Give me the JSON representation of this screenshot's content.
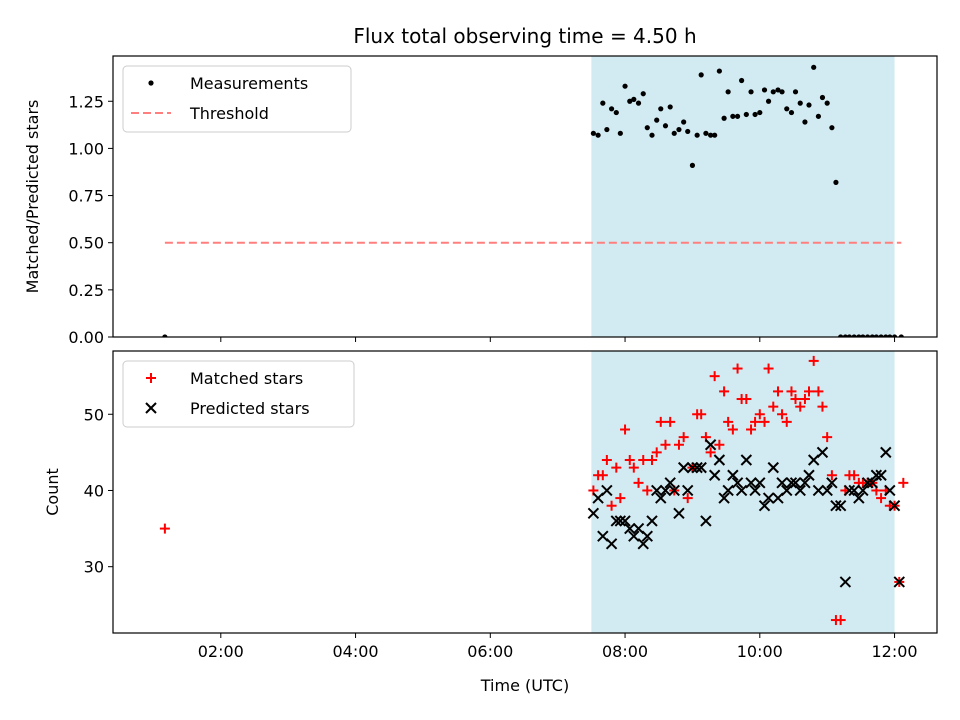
{
  "chart_data": {
    "title": "Flux total observing time = 4.50 h",
    "xlabel": "Time (UTC)",
    "x_units": "decimal hours UTC",
    "xlim": [
      0.4,
      12.63
    ],
    "x_ticks": [
      2,
      4,
      6,
      8,
      10,
      12
    ],
    "x_tick_labels": [
      "02:00",
      "04:00",
      "06:00",
      "08:00",
      "10:00",
      "12:00"
    ],
    "observing_window": {
      "start": 7.5,
      "end": 12.0,
      "color": "#add8e6"
    },
    "panels": [
      {
        "type": "scatter",
        "name": "ratio-panel",
        "ylabel": "Matched/Predicted stars",
        "ylim": [
          0,
          1.49
        ],
        "y_ticks": [
          0,
          0.25,
          0.5,
          0.75,
          1.0,
          1.25
        ],
        "y_tick_labels": [
          "0.00",
          "0.25",
          "0.50",
          "0.75",
          "1.00",
          "1.25"
        ],
        "legend_position": "top-left",
        "series": [
          {
            "name": "Measurements",
            "marker": "dot",
            "color": "#000000",
            "x": [
              1.17,
              7.53,
              7.6,
              7.67,
              7.73,
              7.8,
              7.87,
              7.93,
              8.0,
              8.07,
              8.13,
              8.2,
              8.27,
              8.33,
              8.4,
              8.47,
              8.53,
              8.6,
              8.67,
              8.73,
              8.8,
              8.87,
              8.93,
              9.0,
              9.07,
              9.13,
              9.2,
              9.27,
              9.33,
              9.4,
              9.47,
              9.53,
              9.6,
              9.67,
              9.73,
              9.8,
              9.87,
              9.93,
              10.0,
              10.07,
              10.13,
              10.2,
              10.27,
              10.33,
              10.4,
              10.47,
              10.53,
              10.6,
              10.67,
              10.73,
              10.8,
              10.87,
              10.93,
              11.0,
              11.07,
              11.13,
              11.2,
              11.27,
              11.33,
              11.4,
              11.47,
              11.53,
              11.6,
              11.67,
              11.73,
              11.8,
              11.87,
              11.93,
              12.0,
              12.1
            ],
            "y": [
              0.0,
              1.08,
              1.07,
              1.24,
              1.1,
              1.21,
              1.19,
              1.08,
              1.33,
              1.25,
              1.26,
              1.24,
              1.29,
              1.11,
              1.07,
              1.15,
              1.21,
              1.12,
              1.22,
              1.08,
              1.1,
              1.14,
              1.09,
              0.91,
              1.07,
              1.39,
              1.08,
              1.07,
              1.07,
              1.41,
              1.16,
              1.3,
              1.17,
              1.17,
              1.36,
              1.18,
              1.3,
              1.18,
              1.19,
              1.31,
              1.25,
              1.3,
              1.31,
              1.3,
              1.21,
              1.19,
              1.3,
              1.24,
              1.14,
              1.23,
              1.43,
              1.17,
              1.27,
              1.24,
              1.11,
              0.82,
              0.0,
              0.0,
              0.0,
              0.0,
              0.0,
              0.0,
              0.0,
              0.0,
              0.0,
              0.0,
              0.0,
              0.0,
              0.0,
              0.0
            ]
          },
          {
            "name": "Threshold",
            "marker": "dashed-line",
            "color": "#ff7f7f",
            "x": [
              1.17,
              12.1
            ],
            "y": [
              0.5,
              0.5
            ]
          }
        ]
      },
      {
        "type": "scatter",
        "name": "count-panel",
        "ylabel": "Count",
        "ylim": [
          21.3,
          58.3
        ],
        "y_ticks": [
          30,
          40,
          50
        ],
        "y_tick_labels": [
          "30",
          "40",
          "50"
        ],
        "legend_position": "top-left",
        "series": [
          {
            "name": "Matched stars",
            "marker": "plus",
            "color": "#ff0000",
            "x": [
              1.17,
              7.53,
              7.6,
              7.67,
              7.73,
              7.8,
              7.87,
              7.93,
              8.0,
              8.07,
              8.13,
              8.2,
              8.27,
              8.33,
              8.4,
              8.47,
              8.53,
              8.6,
              8.67,
              8.73,
              8.8,
              8.87,
              8.93,
              9.0,
              9.07,
              9.13,
              9.2,
              9.27,
              9.33,
              9.4,
              9.47,
              9.53,
              9.6,
              9.67,
              9.73,
              9.8,
              9.87,
              9.93,
              10.0,
              10.07,
              10.13,
              10.2,
              10.27,
              10.33,
              10.4,
              10.47,
              10.53,
              10.6,
              10.67,
              10.73,
              10.8,
              10.87,
              10.93,
              11.0,
              11.07,
              11.13,
              11.2,
              11.27,
              11.33,
              11.4,
              11.47,
              11.53,
              11.6,
              11.67,
              11.73,
              11.8,
              11.87,
              11.93,
              12.0,
              12.07,
              12.13
            ],
            "y": [
              35,
              40,
              42,
              42,
              44,
              38,
              43,
              39,
              48,
              44,
              43,
              41,
              44,
              40,
              44,
              45,
              49,
              46,
              49,
              40,
              46,
              47,
              39,
              43,
              50,
              50,
              47,
              45,
              55,
              46,
              53,
              49,
              48,
              56,
              52,
              52,
              48,
              49,
              50,
              49,
              56,
              51,
              53,
              50,
              49,
              53,
              52,
              51,
              52,
              53,
              57,
              53,
              51,
              47,
              42,
              23,
              23,
              40,
              42,
              42,
              41,
              41,
              41,
              41,
              40,
              39,
              40,
              38,
              38,
              28,
              41
            ],
            "y_note": "values read from plot"
          },
          {
            "name": "Predicted stars",
            "marker": "x",
            "color": "#000000",
            "x": [
              7.53,
              7.6,
              7.67,
              7.73,
              7.8,
              7.87,
              7.93,
              8.0,
              8.07,
              8.13,
              8.2,
              8.27,
              8.33,
              8.4,
              8.47,
              8.53,
              8.6,
              8.67,
              8.73,
              8.8,
              8.87,
              8.93,
              9.0,
              9.07,
              9.13,
              9.2,
              9.27,
              9.33,
              9.4,
              9.47,
              9.53,
              9.6,
              9.67,
              9.73,
              9.8,
              9.87,
              9.93,
              10.0,
              10.07,
              10.13,
              10.2,
              10.27,
              10.33,
              10.4,
              10.47,
              10.53,
              10.6,
              10.67,
              10.73,
              10.8,
              10.87,
              10.93,
              11.0,
              11.07,
              11.13,
              11.2,
              11.27,
              11.33,
              11.4,
              11.47,
              11.53,
              11.6,
              11.67,
              11.73,
              11.8,
              11.87,
              11.93,
              12.0,
              12.07
            ],
            "y": [
              37,
              39,
              34,
              40,
              33,
              36,
              36,
              36,
              35,
              34,
              35,
              33,
              34,
              36,
              40,
              39,
              40,
              41,
              40,
              37,
              43,
              40,
              43,
              43,
              43,
              36,
              46,
              42,
              44,
              39,
              40,
              42,
              41,
              40,
              44,
              41,
              40,
              41,
              38,
              39,
              43,
              39,
              41,
              40,
              41,
              41,
              40,
              41,
              42,
              44,
              40,
              45,
              40,
              41,
              38,
              38,
              28,
              40,
              40,
              39,
              40,
              41,
              41,
              42,
              42,
              45,
              40,
              38,
              28
            ]
          }
        ]
      }
    ]
  }
}
